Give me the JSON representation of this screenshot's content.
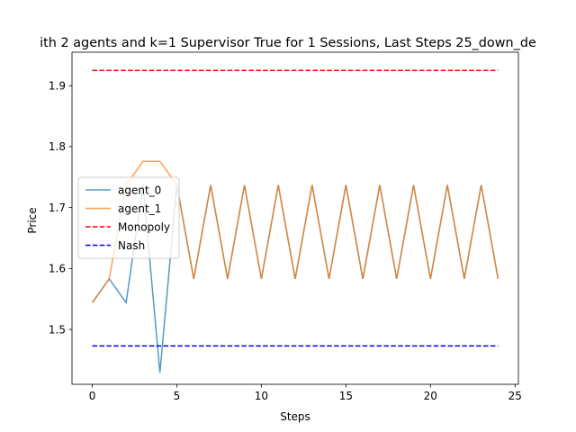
{
  "chart_data": {
    "type": "line",
    "title": "ith 2 agents and k=1 Supervisor True for 1 Sessions, Last Steps 25_down_de",
    "xlabel": "Steps",
    "ylabel": "Price",
    "xlim": [
      -1.2,
      25.2
    ],
    "ylim": [
      1.41,
      1.955
    ],
    "xticks": [
      0,
      5,
      10,
      15,
      20,
      25
    ],
    "yticks": [
      1.5,
      1.6,
      1.7,
      1.8,
      1.9
    ],
    "grid": false,
    "legend": "center-left",
    "x": [
      0,
      1,
      2,
      3,
      4,
      5,
      6,
      7,
      8,
      9,
      10,
      11,
      12,
      13,
      14,
      15,
      16,
      17,
      18,
      19,
      20,
      21,
      22,
      23,
      24
    ],
    "series": [
      {
        "name": "agent_0",
        "color": "#1f77b4",
        "style": "solid",
        "values": [
          1.544,
          1.583,
          1.544,
          1.737,
          1.429,
          1.737,
          1.583,
          1.737,
          1.583,
          1.737,
          1.583,
          1.737,
          1.583,
          1.737,
          1.583,
          1.737,
          1.583,
          1.737,
          1.583,
          1.737,
          1.583,
          1.737,
          1.583,
          1.737,
          1.583
        ]
      },
      {
        "name": "agent_1",
        "color": "#ff7f0e",
        "style": "solid",
        "values": [
          1.544,
          1.583,
          1.737,
          1.776,
          1.776,
          1.737,
          1.583,
          1.737,
          1.583,
          1.737,
          1.583,
          1.737,
          1.583,
          1.737,
          1.583,
          1.737,
          1.583,
          1.737,
          1.583,
          1.737,
          1.583,
          1.737,
          1.583,
          1.737,
          1.583
        ]
      },
      {
        "name": "Monopoly",
        "color": "#ff0000",
        "style": "dashed",
        "values": [
          1.925,
          1.925,
          1.925,
          1.925,
          1.925,
          1.925,
          1.925,
          1.925,
          1.925,
          1.925,
          1.925,
          1.925,
          1.925,
          1.925,
          1.925,
          1.925,
          1.925,
          1.925,
          1.925,
          1.925,
          1.925,
          1.925,
          1.925,
          1.925,
          1.925
        ]
      },
      {
        "name": "Nash",
        "color": "#0000ff",
        "style": "dashed",
        "values": [
          1.473,
          1.473,
          1.473,
          1.473,
          1.473,
          1.473,
          1.473,
          1.473,
          1.473,
          1.473,
          1.473,
          1.473,
          1.473,
          1.473,
          1.473,
          1.473,
          1.473,
          1.473,
          1.473,
          1.473,
          1.473,
          1.473,
          1.473,
          1.473,
          1.473
        ]
      }
    ]
  }
}
